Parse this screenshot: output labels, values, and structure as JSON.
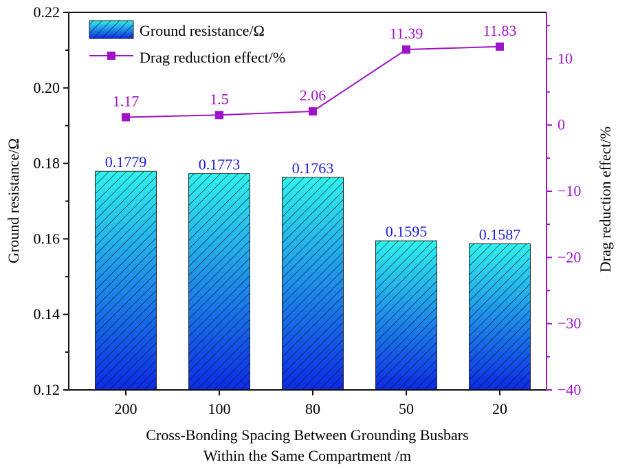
{
  "chart_data": {
    "type": "bar+line",
    "categories": [
      "200",
      "100",
      "80",
      "50",
      "20"
    ],
    "xlabel": [
      "Cross-Bonding Spacing Between Grounding Busbars",
      "Within the Same Compartment /m"
    ],
    "series": [
      {
        "name": "Ground resistance/Ω",
        "type": "bar",
        "axis": "left",
        "values": [
          0.1779,
          0.1773,
          0.1763,
          0.1595,
          0.1587
        ],
        "labels": [
          "0.1779",
          "0.1773",
          "0.1763",
          "0.1595",
          "0.1587"
        ]
      },
      {
        "name": "Drag reduction effect/%",
        "type": "line",
        "axis": "right",
        "values": [
          1.17,
          1.5,
          2.06,
          11.39,
          11.83
        ],
        "labels": [
          "1.17",
          "1.5",
          "2.06",
          "11.39",
          "11.83"
        ]
      }
    ],
    "ylabel_left": "Ground resistance/Ω",
    "ylabel_right": "Drag reduction effect/%",
    "ylim_left": [
      0.12,
      0.22
    ],
    "ylim_right": [
      -40,
      17
    ],
    "yticks_left": [
      "0.12",
      "0.14",
      "0.16",
      "0.18",
      "0.20",
      "0.22"
    ],
    "yticks_right": [
      "−40",
      "−30",
      "−20",
      "−10",
      "0",
      "10"
    ],
    "legend_position": "top-left",
    "colors": {
      "bar_top": "#30f2ee",
      "bar_bottom": "#0c2ae6",
      "line": "#a012c8",
      "bar_label": "#1a1ad8"
    }
  }
}
